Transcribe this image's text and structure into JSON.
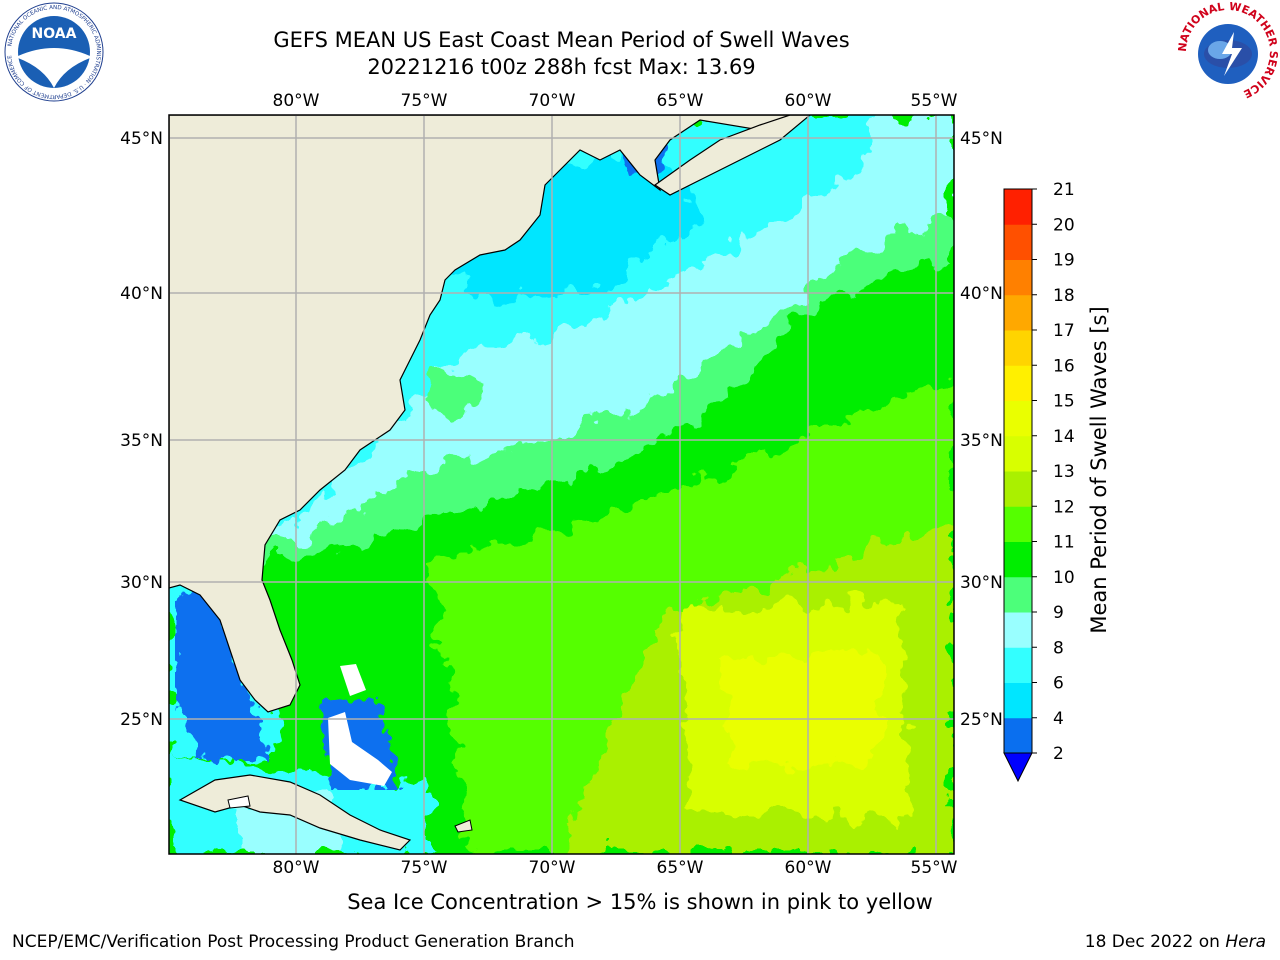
{
  "title_line1": "GEFS MEAN US East Coast Mean Period of Swell Waves",
  "title_line2": "20221216 t00z 288h fcst   Max: 13.69",
  "note": "Sea Ice Concentration > 15% is shown in pink to yellow",
  "footer_left": "NCEP/EMC/Verification Post Processing Product Generation Branch",
  "footer_right_prefix": "18 Dec 2022 on ",
  "footer_right_host": "Hera",
  "noaa_logo_text": "NOAA",
  "noaa_ring_text": "NATIONAL OCEANIC AND ATMOSPHERIC ADMINISTRATION · U.S. DEPARTMENT OF COMMERCE",
  "nws_ring_text": "NATIONAL WEATHER SERVICE",
  "lon_labels": [
    "80°W",
    "75°W",
    "70°W",
    "65°W",
    "60°W",
    "55°W"
  ],
  "lat_labels": [
    "45°N",
    "40°N",
    "35°N",
    "30°N",
    "25°N"
  ],
  "colorbar": {
    "label": "Mean Period of Swell Waves [s]",
    "ticks": [
      "2",
      "4",
      "6",
      "8",
      "9",
      "10",
      "11",
      "12",
      "13",
      "14",
      "15",
      "16",
      "17",
      "18",
      "19",
      "20",
      "21"
    ],
    "colors": [
      "#0a6fef",
      "#00e6ff",
      "#33ffff",
      "#99ffff",
      "#4cff7a",
      "#00ee00",
      "#55ff00",
      "#aaf000",
      "#d8ff00",
      "#eaff00",
      "#fff000",
      "#ffd400",
      "#ffa800",
      "#ff8000",
      "#ff5000",
      "#ff2000"
    ],
    "extend_color": "#0000ff"
  },
  "colors": {
    "land": "#eeecd9",
    "grid": "#b0b0b0",
    "ice_free_mask": "#ffffff"
  }
}
